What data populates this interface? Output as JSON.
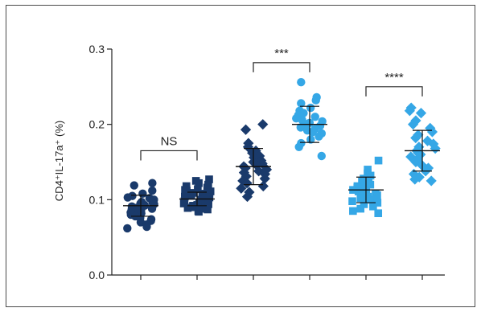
{
  "chart_data": {
    "type": "scatter",
    "ylabel": "CD4⁺IL-17a⁺ (%)",
    "ylim": [
      0.0,
      0.3
    ],
    "yticks": [
      "0.0",
      "0.1",
      "0.2",
      "0.3"
    ],
    "groups": [
      {
        "marker": "circle",
        "color": "#1a3a6b",
        "mean": 0.092,
        "sd": 0.014,
        "values": [
          0.122,
          0.119,
          0.112,
          0.108,
          0.105,
          0.103,
          0.102,
          0.1,
          0.099,
          0.097,
          0.096,
          0.095,
          0.094,
          0.093,
          0.092,
          0.091,
          0.09,
          0.089,
          0.088,
          0.087,
          0.086,
          0.085,
          0.083,
          0.082,
          0.08,
          0.078,
          0.076,
          0.074,
          0.072,
          0.07,
          0.067,
          0.064,
          0.062
        ]
      },
      {
        "marker": "square",
        "color": "#1a3a6b",
        "mean": 0.101,
        "sd": 0.009,
        "values": [
          0.127,
          0.125,
          0.122,
          0.12,
          0.118,
          0.116,
          0.114,
          0.113,
          0.112,
          0.111,
          0.11,
          0.109,
          0.108,
          0.107,
          0.106,
          0.105,
          0.104,
          0.103,
          0.102,
          0.101,
          0.1,
          0.099,
          0.098,
          0.097,
          0.096,
          0.095,
          0.094,
          0.093,
          0.092,
          0.091,
          0.09,
          0.089,
          0.088,
          0.087,
          0.085,
          0.084
        ]
      },
      {
        "marker": "diamond",
        "color": "#1a3a6b",
        "mean": 0.144,
        "sd": 0.024,
        "values": [
          0.2,
          0.193,
          0.175,
          0.17,
          0.165,
          0.162,
          0.158,
          0.156,
          0.152,
          0.15,
          0.148,
          0.146,
          0.144,
          0.142,
          0.14,
          0.138,
          0.136,
          0.134,
          0.131,
          0.128,
          0.125,
          0.122,
          0.118,
          0.115,
          0.11,
          0.104
        ]
      },
      {
        "marker": "circle",
        "color": "#35a7e6",
        "mean": 0.2,
        "sd": 0.024,
        "values": [
          0.256,
          0.236,
          0.232,
          0.228,
          0.222,
          0.218,
          0.215,
          0.212,
          0.21,
          0.208,
          0.206,
          0.204,
          0.202,
          0.2,
          0.198,
          0.196,
          0.194,
          0.192,
          0.19,
          0.188,
          0.184,
          0.18,
          0.175,
          0.17,
          0.158
        ]
      },
      {
        "marker": "square",
        "color": "#35a7e6",
        "mean": 0.113,
        "sd": 0.017,
        "values": [
          0.152,
          0.14,
          0.135,
          0.132,
          0.128,
          0.126,
          0.124,
          0.122,
          0.12,
          0.118,
          0.116,
          0.114,
          0.113,
          0.112,
          0.111,
          0.11,
          0.108,
          0.106,
          0.104,
          0.102,
          0.1,
          0.098,
          0.096,
          0.094,
          0.091,
          0.088,
          0.085,
          0.082
        ]
      },
      {
        "marker": "diamond",
        "color": "#35a7e6",
        "mean": 0.165,
        "sd": 0.027,
        "values": [
          0.222,
          0.218,
          0.215,
          0.205,
          0.2,
          0.195,
          0.19,
          0.186,
          0.182,
          0.178,
          0.174,
          0.17,
          0.168,
          0.165,
          0.162,
          0.16,
          0.157,
          0.154,
          0.15,
          0.146,
          0.142,
          0.138,
          0.134,
          0.13,
          0.127,
          0.125
        ]
      }
    ],
    "annotations": [
      {
        "label": "NS",
        "from_group": 0,
        "to_group": 1,
        "y": 0.165
      },
      {
        "label": "***",
        "from_group": 2,
        "to_group": 3,
        "y": 0.282
      },
      {
        "label": "****",
        "from_group": 4,
        "to_group": 5,
        "y": 0.25
      }
    ]
  }
}
